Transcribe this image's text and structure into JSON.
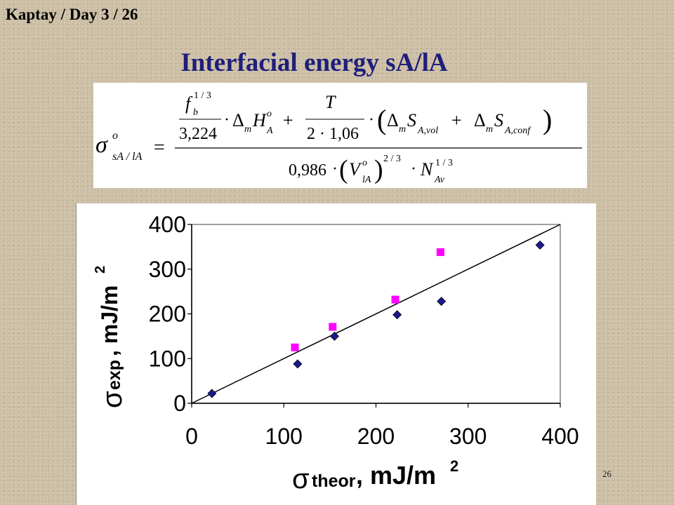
{
  "slide": {
    "header": "Kaptay / Day 3 / 26",
    "title": "Interfacial energy sA/lA",
    "page_number": "26"
  },
  "formula": {
    "lhs_symbol": "σ",
    "lhs_superscript": "o",
    "lhs_subscript": "sA / lA",
    "equals": "=",
    "numerator": {
      "f": "f",
      "f_sup": "1 / 3",
      "f_sub": "b",
      "c1": "3,224",
      "dot1": "·",
      "delta1": "Δ",
      "m1": "m",
      "H": "H",
      "H_sup": "o",
      "H_sub": "A",
      "plus1": "+",
      "T": "T",
      "c2": "2 · 1,06",
      "dot2": "·",
      "lparen": "(",
      "delta2": "Δ",
      "m2": "m",
      "S1": "S",
      "S1_sub": "A,vol",
      "plus2": "+",
      "delta3": "Δ",
      "m3": "m",
      "S2": "S",
      "S2_sub": "A,conf",
      "rparen": ")"
    },
    "denominator": {
      "c3": "0,986",
      "dot3": "·",
      "lparen": "(",
      "V": "V",
      "V_sup": "o",
      "V_sub": "lA",
      "rparen": ")",
      "exp": "2 / 3",
      "dot4": "·",
      "N": "N",
      "N_sup": "1 / 3",
      "N_sub": "Av"
    }
  },
  "chart_data": {
    "type": "scatter",
    "xlim": [
      0,
      400
    ],
    "ylim": [
      0,
      400
    ],
    "xticks": [
      0,
      100,
      200,
      300,
      400
    ],
    "yticks": [
      0,
      100,
      200,
      300,
      400
    ],
    "xlabel": {
      "symbol": "σ",
      "subscript": "theor",
      "unit": ", mJ/m",
      "unit_sup": "2"
    },
    "ylabel": {
      "symbol": "σ",
      "subscript": "exp",
      "unit": ", mJ/m",
      "unit_sup": "2"
    },
    "grid": false,
    "series": [
      {
        "marker": "diamond",
        "color": "#1a1a8a",
        "points": [
          [
            22,
            22
          ],
          [
            115,
            88
          ],
          [
            155,
            150
          ],
          [
            223,
            198
          ],
          [
            271,
            228
          ],
          [
            378,
            354
          ]
        ]
      },
      {
        "marker": "square",
        "color": "#ff00ff",
        "points": [
          [
            112,
            125
          ],
          [
            153,
            171
          ],
          [
            221,
            232
          ],
          [
            270,
            338
          ]
        ]
      }
    ],
    "reference_line": {
      "x": [
        0,
        400
      ],
      "y": [
        0,
        400
      ],
      "color": "#000000"
    }
  }
}
